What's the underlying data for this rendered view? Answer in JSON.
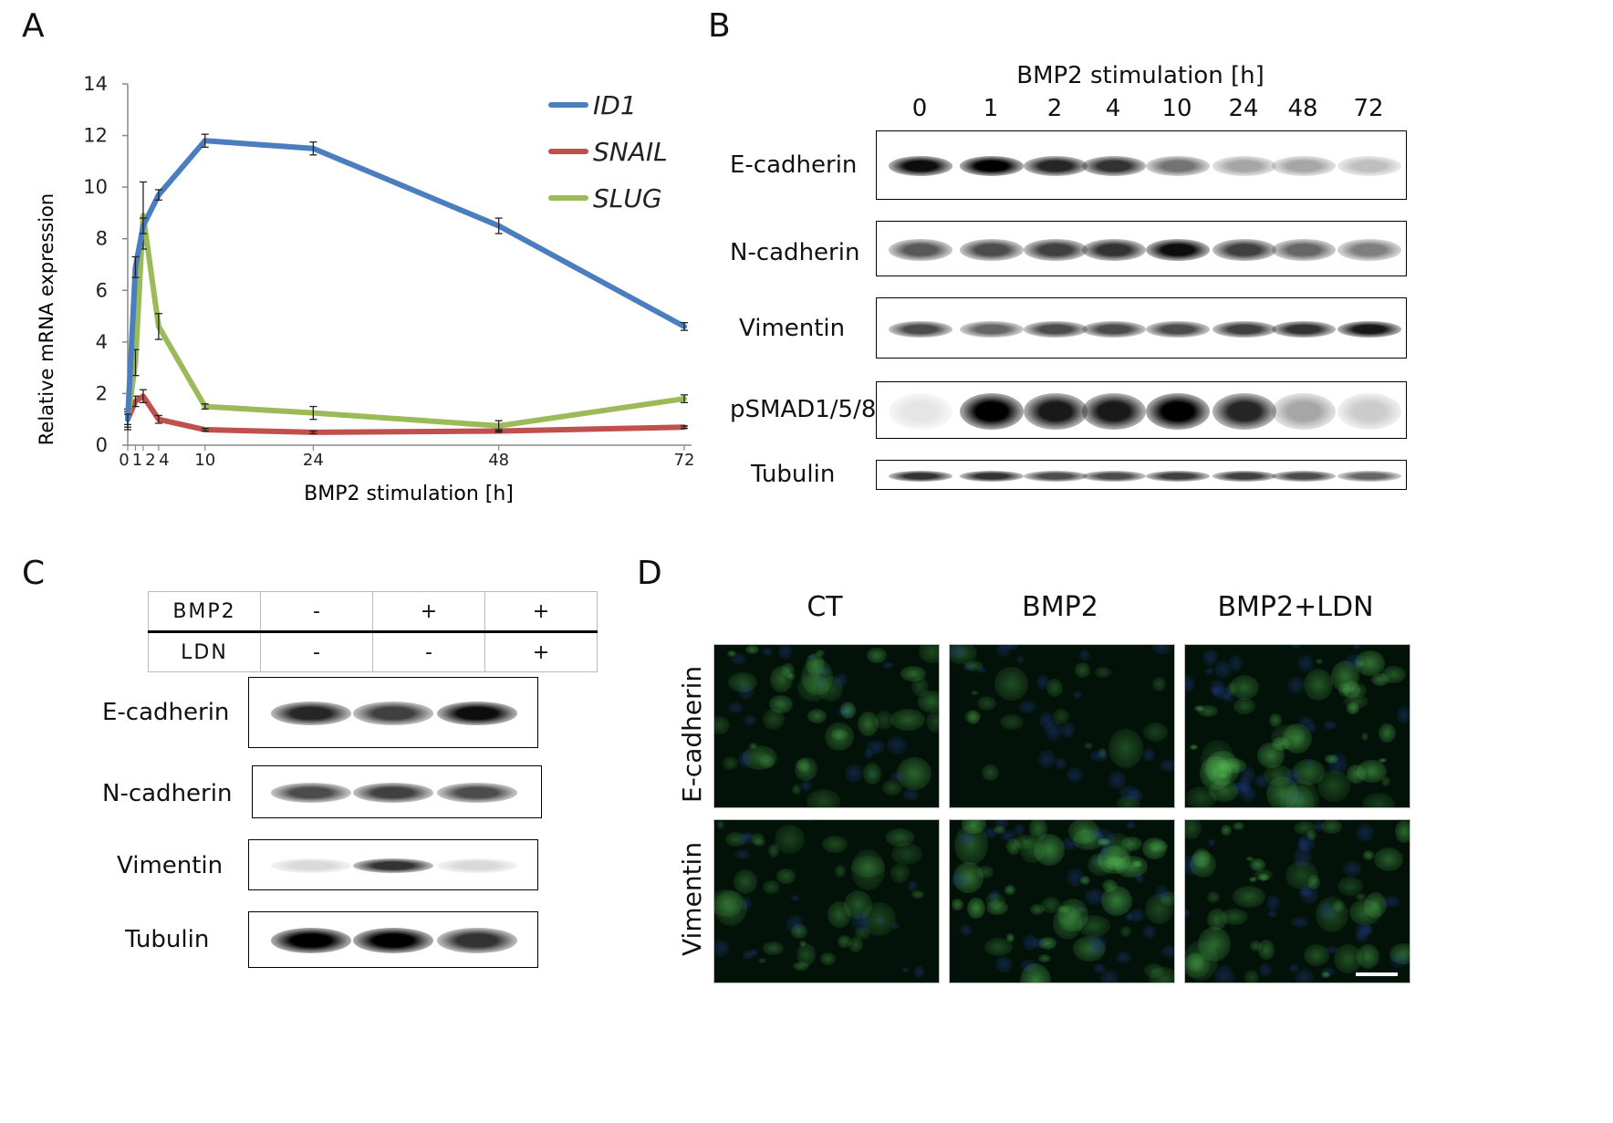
{
  "panels": {
    "a": "A",
    "b": "B",
    "c": "C",
    "d": "D"
  },
  "chart_data": {
    "type": "line",
    "xlabel": "BMP2 stimulation [h]",
    "ylabel": "Relative mRNA expression",
    "ylim": [
      0,
      14
    ],
    "xlim": [
      0,
      72
    ],
    "x_ticks": [
      "0",
      "1",
      "2",
      "4",
      "10",
      "24",
      "48",
      "72"
    ],
    "y_ticks": [
      "0",
      "2",
      "4",
      "6",
      "8",
      "10",
      "12",
      "14"
    ],
    "grid": false,
    "legend_position": "top-right",
    "x": [
      0,
      1,
      2,
      4,
      10,
      24,
      48,
      72
    ],
    "series": [
      {
        "name": "ID1",
        "color": "#4a7ebf",
        "values": [
          1.0,
          6.9,
          8.5,
          9.7,
          11.8,
          11.5,
          8.5,
          4.6
        ],
        "errors": [
          0.2,
          0.4,
          0.3,
          0.2,
          0.25,
          0.25,
          0.3,
          0.15
        ]
      },
      {
        "name": "SNAIL",
        "color": "#c0504d",
        "values": [
          1.0,
          1.7,
          1.9,
          1.0,
          0.6,
          0.5,
          0.55,
          0.7
        ],
        "errors": [
          0.3,
          0.2,
          0.25,
          0.15,
          0.05,
          0.05,
          0.05,
          0.05
        ]
      },
      {
        "name": "SLUG",
        "color": "#9bbb59",
        "values": [
          1.0,
          3.2,
          8.9,
          4.6,
          1.5,
          1.25,
          0.75,
          1.8
        ],
        "errors": [
          0.4,
          0.5,
          1.3,
          0.5,
          0.1,
          0.25,
          0.2,
          0.15
        ]
      }
    ]
  },
  "blot_b": {
    "title": "BMP2 stimulation [h]",
    "lanes": [
      "0",
      "1",
      "2",
      "4",
      "10",
      "24",
      "48",
      "72"
    ],
    "rows": [
      {
        "label": "E-cadherin",
        "intensity": [
          0.95,
          1.0,
          0.85,
          0.8,
          0.55,
          0.35,
          0.35,
          0.25
        ]
      },
      {
        "label": "N-cadherin",
        "intensity": [
          0.65,
          0.7,
          0.75,
          0.8,
          0.95,
          0.75,
          0.6,
          0.5
        ]
      },
      {
        "label": "Vimentin",
        "intensity": [
          0.7,
          0.6,
          0.7,
          0.7,
          0.7,
          0.75,
          0.8,
          0.9
        ]
      },
      {
        "label": "pSMAD1/5/8",
        "intensity": [
          0.1,
          1.0,
          0.9,
          0.9,
          1.0,
          0.85,
          0.35,
          0.2
        ]
      },
      {
        "label": "Tubulin",
        "intensity": [
          0.8,
          0.8,
          0.7,
          0.7,
          0.75,
          0.75,
          0.7,
          0.6
        ]
      }
    ]
  },
  "blot_c": {
    "treatments": [
      {
        "label": "BMP2",
        "values": [
          "-",
          "+",
          "+"
        ]
      },
      {
        "label": "LDN",
        "values": [
          "-",
          "-",
          "+"
        ]
      }
    ],
    "rows": [
      {
        "label": "E-cadherin",
        "intensity": [
          0.85,
          0.75,
          0.95
        ]
      },
      {
        "label": "N-cadherin",
        "intensity": [
          0.7,
          0.75,
          0.7
        ]
      },
      {
        "label": "Vimentin",
        "intensity": [
          0.15,
          0.8,
          0.15
        ]
      },
      {
        "label": "Tubulin",
        "intensity": [
          1.0,
          1.0,
          0.8
        ]
      }
    ]
  },
  "panel_d": {
    "conditions": [
      "CT",
      "BMP2",
      "BMP2+LDN"
    ],
    "rows": [
      "E-cadherin",
      "Vimentin"
    ]
  }
}
